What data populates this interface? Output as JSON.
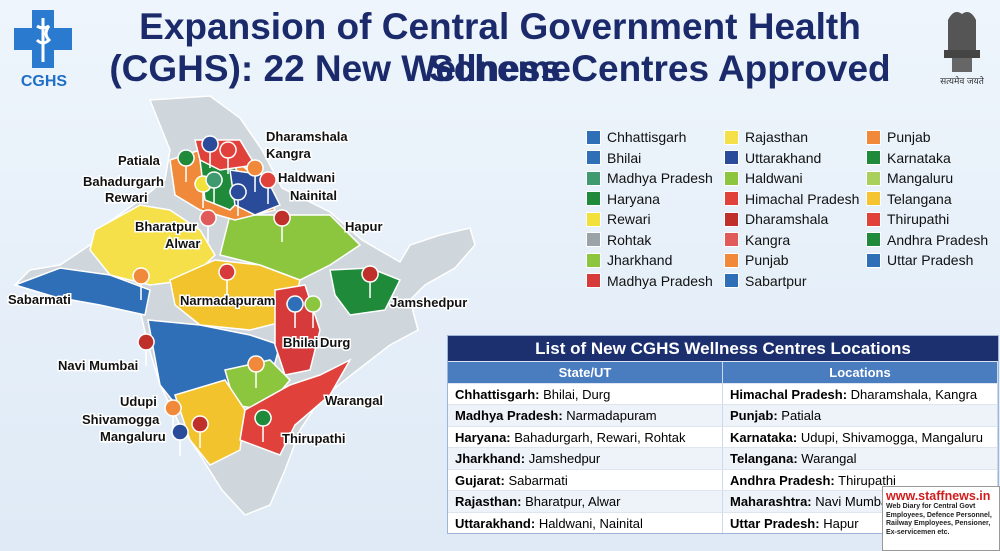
{
  "header": {
    "title_line1": "Expansion of Central Government Health Scheme",
    "title_line2": "(CGHS): 22 New Wellness Centres Approved",
    "logo_text": "CGHS",
    "emblem_motto": "सत्यमेव जयते"
  },
  "legend": {
    "columns": [
      [
        {
          "label": "Chhattisgarh",
          "color": "#2f6fb8"
        },
        {
          "label": "Bhilai",
          "color": "#2f6fb8"
        },
        {
          "label": "Madhya Pradesh",
          "color": "#3f9a70"
        },
        {
          "label": "Haryana",
          "color": "#1e8a3a"
        },
        {
          "label": "Rewari",
          "color": "#f2e13a"
        },
        {
          "label": "Rohtak",
          "color": "#9aa3a8"
        },
        {
          "label": "Jharkhand",
          "color": "#8cc63f"
        },
        {
          "label": "Madhya Pradesh",
          "color": "#d63a3a"
        }
      ],
      [
        {
          "label": "Rajasthan",
          "color": "#f5e04a"
        },
        {
          "label": "Uttarakhand",
          "color": "#2a4a9a"
        },
        {
          "label": "Haldwani",
          "color": "#8cc63f"
        },
        {
          "label": "Himachal Pradesh",
          "color": "#e0413a"
        },
        {
          "label": "Dharamshala",
          "color": "#c0302a"
        },
        {
          "label": "Kangra",
          "color": "#e05a5a"
        },
        {
          "label": "Punjab",
          "color": "#f08a3a"
        },
        {
          "label": "Sabartpur",
          "color": "#2f6fb8"
        }
      ],
      [
        {
          "label": "Punjab",
          "color": "#f08a3a"
        },
        {
          "label": "Karnataka",
          "color": "#1e8a3a"
        },
        {
          "label": "Mangaluru",
          "color": "#a8d05a"
        },
        {
          "label": "Telangana",
          "color": "#f5c430"
        },
        {
          "label": "Thirupathi",
          "color": "#e0413a"
        },
        {
          "label": "Andhra Pradesh",
          "color": "#1e8a3a"
        },
        {
          "label": "Uttar Pradesh",
          "color": "#2f6fb8"
        }
      ]
    ]
  },
  "map_labels": [
    "Dharamshala",
    "Kangra",
    "Patiala",
    "Bahadurgarh",
    "Rewari",
    "Haldwani",
    "Nainital",
    "Hapur",
    "Bharatpur",
    "Alwar",
    "Sabarmati",
    "Narmadapuram",
    "Jamshedpur",
    "Bhilai",
    "Durg",
    "Navi Mumbai",
    "Warangal",
    "Udupi",
    "Shivamogga",
    "Mangaluru",
    "Thirupathi"
  ],
  "table": {
    "title": "List of New CGHS Wellness Centres Locations",
    "headers": [
      "State/UT",
      "Locations"
    ],
    "rows": [
      [
        {
          "state": "Chhattisgarh:",
          "places": "Bhilai, Durg"
        },
        {
          "state": "Himachal Pradesh:",
          "places": "Dharamshala, Kangra"
        }
      ],
      [
        {
          "state": "Madhya Pradesh:",
          "places": "Narmadapuram"
        },
        {
          "state": "Punjab:",
          "places": "Patiala"
        }
      ],
      [
        {
          "state": "Haryana:",
          "places": "Bahadurgarh, Rewari, Rohtak"
        },
        {
          "state": "Karnataka:",
          "places": "Udupi, Shivamogga, Mangaluru"
        }
      ],
      [
        {
          "state": "Jharkhand:",
          "places": "Jamshedpur"
        },
        {
          "state": "Telangana:",
          "places": "Warangal"
        }
      ],
      [
        {
          "state": "Gujarat:",
          "places": "Sabarmati"
        },
        {
          "state": "Andhra Pradesh:",
          "places": "Thirupathi"
        }
      ],
      [
        {
          "state": "Rajasthan:",
          "places": "Bharatpur, Alwar"
        },
        {
          "state": "Maharashtra:",
          "places": "Navi Mumbai"
        }
      ],
      [
        {
          "state": "Uttarakhand:",
          "places": "Haldwani, Nainital"
        },
        {
          "state": "Uttar Pradesh:",
          "places": "Hapur"
        }
      ]
    ]
  },
  "watermark": {
    "site": "www.staffnews.in",
    "tagline": "Web Diary for Central Govt Employees, Defence Personnel, Railway Employees, Pensioner, Ex-servicemen etc."
  }
}
